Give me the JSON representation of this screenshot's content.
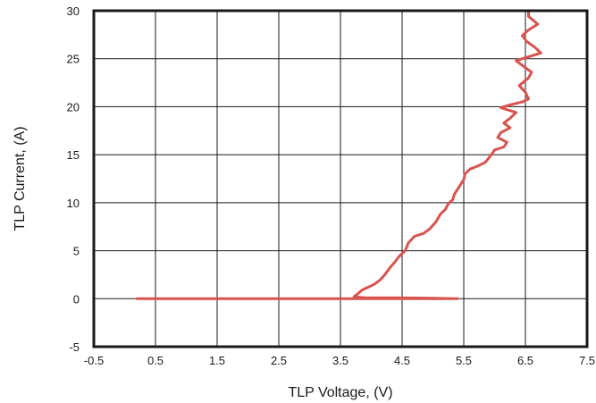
{
  "chart_data": {
    "type": "line",
    "xlabel": "TLP Voltage, (V)",
    "ylabel": "TLP Current, (A)",
    "xlim": [
      -0.5,
      7.5
    ],
    "ylim": [
      -5,
      30
    ],
    "xticks": [
      -0.5,
      0.5,
      1.5,
      2.5,
      3.5,
      4.5,
      5.5,
      6.5,
      7.5
    ],
    "yticks": [
      -5,
      0,
      5,
      10,
      15,
      20,
      25,
      30
    ],
    "xtick_labels": [
      "-0.5",
      "0.5",
      "1.5",
      "2.5",
      "3.5",
      "4.5",
      "5.5",
      "6.5",
      "7.5"
    ],
    "ytick_labels": [
      "-5",
      "0",
      "5",
      "10",
      "15",
      "20",
      "25",
      "30"
    ],
    "grid": true,
    "series": [
      {
        "color": "#d9534f",
        "points": [
          [
            0.2,
            0
          ],
          [
            1.5,
            0
          ],
          [
            2.5,
            0
          ],
          [
            3.5,
            0
          ],
          [
            4.5,
            0
          ],
          [
            5.4,
            0
          ],
          [
            5.0,
            0.05
          ],
          [
            4.5,
            0.1
          ],
          [
            3.9,
            0.1
          ],
          [
            3.72,
            0.2
          ],
          [
            3.78,
            0.5
          ],
          [
            3.85,
            0.9
          ],
          [
            3.95,
            1.2
          ],
          [
            4.05,
            1.5
          ],
          [
            4.15,
            2.0
          ],
          [
            4.22,
            2.5
          ],
          [
            4.3,
            3.2
          ],
          [
            4.38,
            3.8
          ],
          [
            4.45,
            4.4
          ],
          [
            4.55,
            5.0
          ],
          [
            4.6,
            5.8
          ],
          [
            4.7,
            6.5
          ],
          [
            4.85,
            6.8
          ],
          [
            4.95,
            7.3
          ],
          [
            5.05,
            8.0
          ],
          [
            5.12,
            8.8
          ],
          [
            5.2,
            9.3
          ],
          [
            5.25,
            9.9
          ],
          [
            5.32,
            10.3
          ],
          [
            5.35,
            10.9
          ],
          [
            5.4,
            11.4
          ],
          [
            5.45,
            11.9
          ],
          [
            5.5,
            12.4
          ],
          [
            5.52,
            13.0
          ],
          [
            5.6,
            13.5
          ],
          [
            5.72,
            13.8
          ],
          [
            5.85,
            14.2
          ],
          [
            5.95,
            15.0
          ],
          [
            6.0,
            15.5
          ],
          [
            6.15,
            15.8
          ],
          [
            6.2,
            16.3
          ],
          [
            6.05,
            16.8
          ],
          [
            6.1,
            17.3
          ],
          [
            6.25,
            17.8
          ],
          [
            6.15,
            18.3
          ],
          [
            6.25,
            18.8
          ],
          [
            6.35,
            19.4
          ],
          [
            6.1,
            19.9
          ],
          [
            6.25,
            20.2
          ],
          [
            6.45,
            20.5
          ],
          [
            6.55,
            20.8
          ],
          [
            6.5,
            21.5
          ],
          [
            6.4,
            22.2
          ],
          [
            6.55,
            23.0
          ],
          [
            6.6,
            23.6
          ],
          [
            6.45,
            24.3
          ],
          [
            6.35,
            24.8
          ],
          [
            6.55,
            25.2
          ],
          [
            6.75,
            25.6
          ],
          [
            6.65,
            26.2
          ],
          [
            6.52,
            26.8
          ],
          [
            6.45,
            27.4
          ],
          [
            6.55,
            28.0
          ],
          [
            6.7,
            28.6
          ],
          [
            6.55,
            29.4
          ],
          [
            6.55,
            30.0
          ]
        ]
      }
    ]
  }
}
